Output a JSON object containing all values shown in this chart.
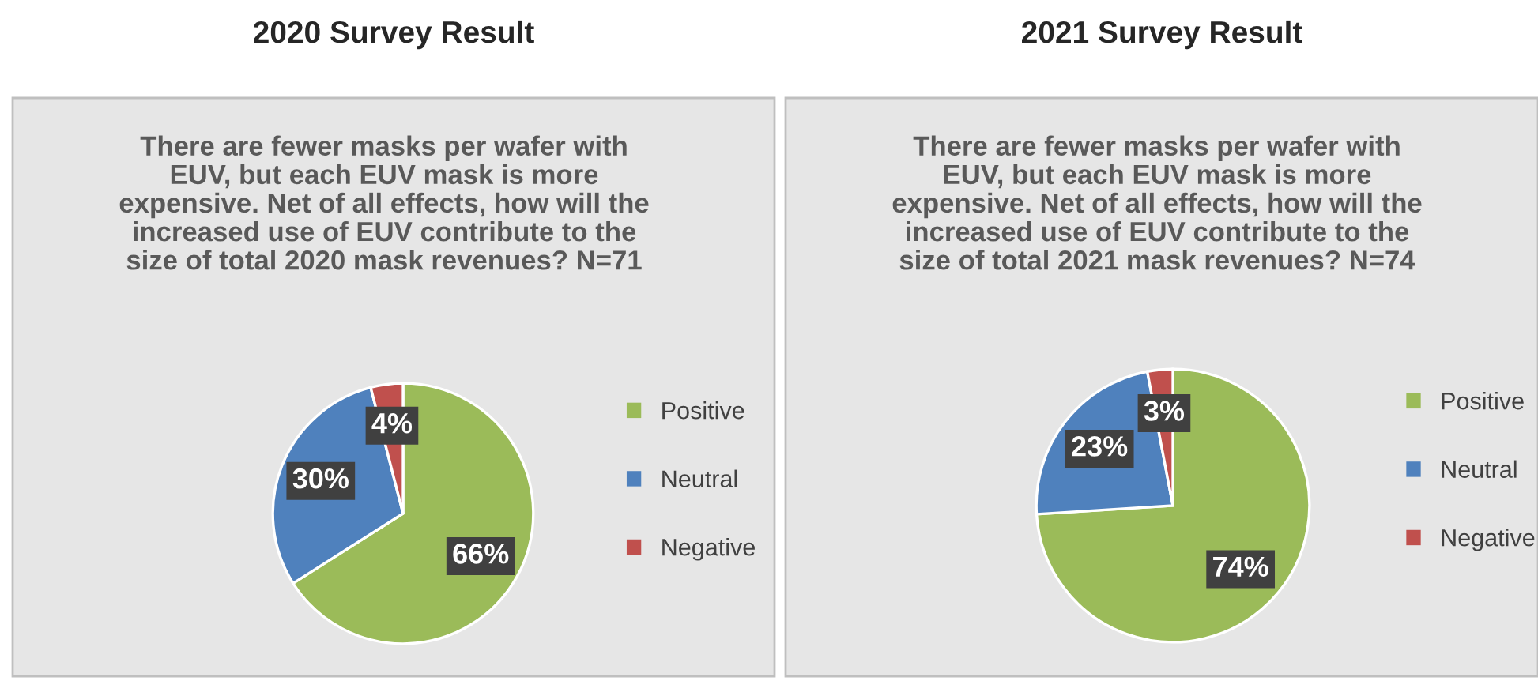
{
  "chart_data": [
    {
      "type": "pie",
      "title": "2020 Survey Result",
      "subtitle": "There are fewer masks per wafer with\nEUV, but each EUV mask is more\nexpensive. Net of all effects, how will the\nincreased use of EUV contribute to the\nsize of total 2020 mask revenues? N=71",
      "categories": [
        "Positive",
        "Neutral",
        "Negative"
      ],
      "values": [
        66,
        30,
        4
      ],
      "value_labels": [
        "66%",
        "30%",
        "4%"
      ],
      "colors": [
        "#9bbb59",
        "#4f81bd",
        "#c0504d"
      ],
      "legend": "right"
    },
    {
      "type": "pie",
      "title": "2021 Survey Result",
      "subtitle": "There are fewer masks per wafer with\nEUV, but each EUV mask is more\nexpensive. Net of all effects, how will the\nincreased use of EUV contribute to the\nsize of total 2021 mask revenues? N=74",
      "categories": [
        "Positive",
        "Neutral",
        "Negative"
      ],
      "values": [
        74,
        23,
        3
      ],
      "value_labels": [
        "74%",
        "23%",
        "3%"
      ],
      "colors": [
        "#9bbb59",
        "#4f81bd",
        "#c0504d"
      ],
      "legend": "right"
    }
  ]
}
